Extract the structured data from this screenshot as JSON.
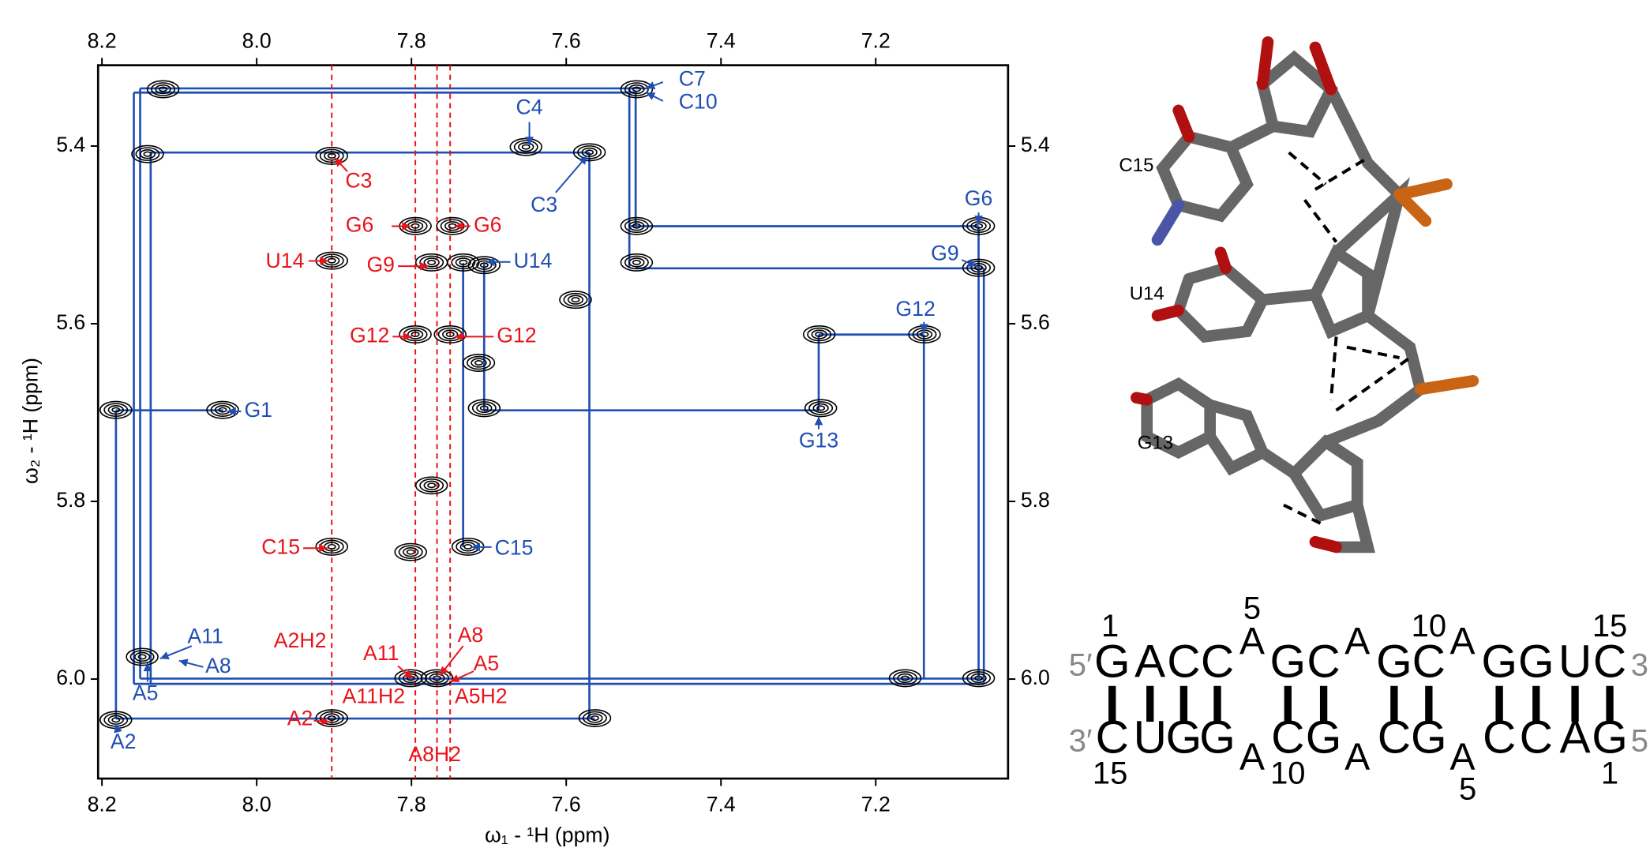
{
  "chart_data": {
    "type": "scatter",
    "x_label": "ω₁ - ¹H (ppm)",
    "y_label": "ω₂ - ¹H (ppm)",
    "xlim": [
      8.205,
      7.029
    ],
    "ylim": [
      5.309,
      6.112
    ],
    "xticks": [
      8.2,
      {
        "value": 8,
        "label": "8.0"
      },
      7.8,
      7.6,
      7.4,
      7.2
    ],
    "yticks": [
      5.4,
      5.6,
      5.8,
      {
        "value": 6,
        "label": "6.0"
      }
    ],
    "color": "#000000",
    "x": [
      8.121,
      7.509,
      8.141,
      7.903,
      7.652,
      7.57,
      7.509,
      7.509,
      7.067,
      7.067,
      7.795,
      7.747,
      7.774,
      7.733,
      7.706,
      7.903,
      7.795,
      7.75,
      7.713,
      7.273,
      7.137,
      8.182,
      8.044,
      7.706,
      7.271,
      7.903,
      7.801,
      7.727,
      8.148,
      7.801,
      7.767,
      7.162,
      7.067,
      8.182,
      7.903,
      7.563,
      7.588,
      7.774
    ],
    "values": [
      5.336,
      5.336,
      5.409,
      5.411,
      5.401,
      5.407,
      5.49,
      5.531,
      5.49,
      5.537,
      5.49,
      5.49,
      5.531,
      5.531,
      5.534,
      5.529,
      5.612,
      5.612,
      5.644,
      5.612,
      5.612,
      5.697,
      5.697,
      5.695,
      5.695,
      5.851,
      5.857,
      5.851,
      5.975,
      5.999,
      5.999,
      5.999,
      5.999,
      6.046,
      6.044,
      6.044,
      5.573,
      5.782
    ],
    "reference_lines": {
      "x": [
        7.903,
        7.795,
        7.767,
        7.75
      ],
      "labels": [
        "A2H2",
        "A11H2",
        "A8H2",
        "A5H2"
      ],
      "color": "#e8141b"
    },
    "annotations": [
      {
        "text": "C7",
        "color": "#1f4fb4"
      },
      {
        "text": "C10",
        "color": "#1f4fb4"
      },
      {
        "text": "C4",
        "color": "#1f4fb4"
      },
      {
        "text": "C3",
        "color": "#1f4fb4"
      },
      {
        "text": "G6",
        "color": "#1f4fb4"
      },
      {
        "text": "G9",
        "color": "#1f4fb4"
      },
      {
        "text": "U14",
        "color": "#1f4fb4"
      },
      {
        "text": "G12",
        "color": "#1f4fb4"
      },
      {
        "text": "G1",
        "color": "#1f4fb4"
      },
      {
        "text": "G13",
        "color": "#1f4fb4"
      },
      {
        "text": "C15",
        "color": "#1f4fb4"
      },
      {
        "text": "A11",
        "color": "#1f4fb4"
      },
      {
        "text": "A8",
        "color": "#1f4fb4"
      },
      {
        "text": "A5",
        "color": "#1f4fb4"
      },
      {
        "text": "A2",
        "color": "#1f4fb4"
      },
      {
        "text": "C3",
        "color": "#e8141b"
      },
      {
        "text": "G6",
        "color": "#e8141b"
      },
      {
        "text": "G6",
        "color": "#e8141b"
      },
      {
        "text": "U14",
        "color": "#e8141b"
      },
      {
        "text": "G9",
        "color": "#e8141b"
      },
      {
        "text": "G12",
        "color": "#e8141b"
      },
      {
        "text": "G12",
        "color": "#e8141b"
      },
      {
        "text": "C15",
        "color": "#e8141b"
      },
      {
        "text": "A11",
        "color": "#e8141b"
      },
      {
        "text": "A8",
        "color": "#e8141b"
      },
      {
        "text": "A5",
        "color": "#e8141b"
      },
      {
        "text": "A2",
        "color": "#e8141b"
      }
    ]
  },
  "structure": {
    "labels": [
      "C15",
      "U14",
      "G13"
    ]
  },
  "sequence": {
    "top": {
      "end_left": "5′",
      "end_right": "3",
      "letters": [
        "G",
        "A",
        "C",
        "C",
        "A",
        "G",
        "C",
        "A",
        "G",
        "C",
        "A",
        "G",
        "G",
        "U",
        "C"
      ],
      "numbers": [
        1,
        5,
        10,
        15
      ]
    },
    "bottom": {
      "end_left": "3′",
      "end_right": "5",
      "letters": [
        "C",
        "U",
        "G",
        "G",
        "A",
        "C",
        "G",
        "A",
        "C",
        "G",
        "A",
        "C",
        "C",
        "A",
        "G"
      ],
      "numbers": [
        15,
        10,
        5,
        1
      ]
    }
  }
}
